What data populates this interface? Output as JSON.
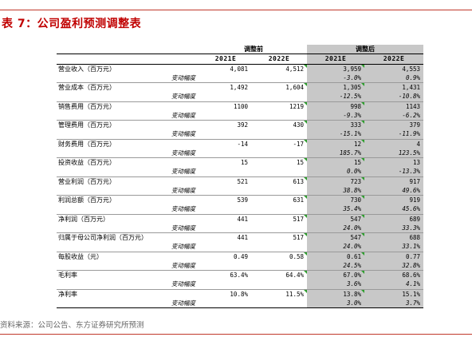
{
  "title": "表 7：公司盈利预测调整表",
  "headers": {
    "group_before": "调整前",
    "group_after": "调整后",
    "years": [
      "2021E",
      "2022E",
      "2021E",
      "2022E"
    ]
  },
  "rows": [
    {
      "item": "营业收入（百万元）",
      "vals": [
        "4,081",
        "4,512",
        "3,959",
        "4,553"
      ],
      "sub": "变动幅度",
      "sub_vals": [
        "-3.0%",
        "0.9%"
      ]
    },
    {
      "item": "营业成本（百万元）",
      "vals": [
        "1,492",
        "1,604",
        "1,305",
        "1,431"
      ],
      "sub": "变动幅度",
      "sub_vals": [
        "-12.5%",
        "-10.8%"
      ]
    },
    {
      "item": "销售费用（百万元）",
      "vals": [
        "1100",
        "1219",
        "998",
        "1143"
      ],
      "sub": "变动幅度",
      "sub_vals": [
        "-9.3%",
        "-6.2%"
      ]
    },
    {
      "item": "管理费用（百万元）",
      "vals": [
        "392",
        "430",
        "333",
        "379"
      ],
      "sub": "变动幅度",
      "sub_vals": [
        "-15.1%",
        "-11.9%"
      ]
    },
    {
      "item": "财务费用（百万元）",
      "vals": [
        "-14",
        "-17",
        "12",
        "4"
      ],
      "sub": "变动幅度",
      "sub_vals": [
        "185.7%",
        "123.5%"
      ]
    },
    {
      "item": "投资收益（百万元）",
      "vals": [
        "15",
        "15",
        "15",
        "13"
      ],
      "sub": "变动幅度",
      "sub_vals": [
        "0.0%",
        "-13.3%"
      ]
    },
    {
      "item": "营业利润（百万元）",
      "vals": [
        "521",
        "613",
        "723",
        "917"
      ],
      "sub": "变动幅度",
      "sub_vals": [
        "38.8%",
        "49.6%"
      ]
    },
    {
      "item": "利润总额（百万元）",
      "vals": [
        "539",
        "631",
        "730",
        "919"
      ],
      "sub": "变动幅度",
      "sub_vals": [
        "35.4%",
        "45.6%"
      ]
    },
    {
      "item": "净利润（百万元）",
      "vals": [
        "441",
        "517",
        "547",
        "689"
      ],
      "sub": "变动幅度",
      "sub_vals": [
        "24.0%",
        "33.3%"
      ]
    },
    {
      "item": "归属于母公司净利润（百万元）",
      "vals": [
        "441",
        "517",
        "547",
        "688"
      ],
      "sub": "变动幅度",
      "sub_vals": [
        "24.0%",
        "33.1%"
      ]
    },
    {
      "item": "每股收益（元）",
      "vals": [
        "0.49",
        "0.58",
        "0.61",
        "0.77"
      ],
      "sub": "变动幅度",
      "sub_vals": [
        "24.5%",
        "32.8%"
      ]
    },
    {
      "item": "毛利率",
      "vals": [
        "63.4%",
        "64.4%",
        "67.0%",
        "68.6%"
      ],
      "sub": "变动幅度",
      "sub_vals": [
        "3.6%",
        "4.1%"
      ]
    },
    {
      "item": "净利率",
      "vals": [
        "10.8%",
        "11.5%",
        "13.8%",
        "15.1%"
      ],
      "sub": "变动幅度",
      "sub_vals": [
        "3.0%",
        "3.7%"
      ]
    }
  ],
  "source": "资料来源：公司公告、东方证券研究所预测",
  "colors": {
    "accent": "#c00000",
    "rule": "#c0392b",
    "shade": "#c8c8c8",
    "marker": "#2e9e2e"
  }
}
